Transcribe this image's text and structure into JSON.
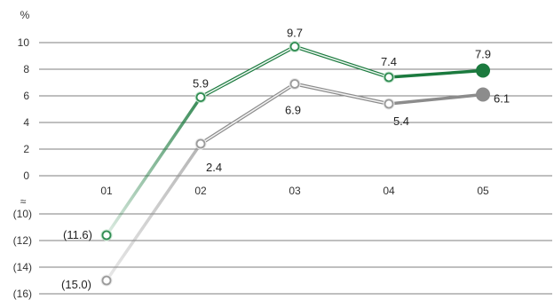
{
  "chart_data": {
    "type": "line",
    "title": "",
    "xlabel": "",
    "ylabel": "%",
    "categories": [
      "01",
      "02",
      "03",
      "04",
      "05"
    ],
    "y_ticks_upper": [
      {
        "value": 10,
        "label": "10"
      },
      {
        "value": 8,
        "label": "8"
      },
      {
        "value": 6,
        "label": "6"
      },
      {
        "value": 4,
        "label": "4"
      },
      {
        "value": 2,
        "label": "2"
      },
      {
        "value": 0,
        "label": "0"
      }
    ],
    "axis_break_symbol": "≈",
    "y_ticks_lower": [
      {
        "value": -10,
        "label": "(10)"
      },
      {
        "value": -12,
        "label": "(12)"
      },
      {
        "value": -14,
        "label": "(14)"
      },
      {
        "value": -16,
        "label": "(16)"
      }
    ],
    "series": [
      {
        "color": "#1b7a3e",
        "values": [
          -11.6,
          5.9,
          9.7,
          7.4,
          7.9
        ],
        "labels": [
          "(11.6)",
          "5.9",
          "9.7",
          "7.4",
          "7.9"
        ]
      },
      {
        "color": "#8c8c8c",
        "values": [
          -15.0,
          2.4,
          6.9,
          5.4,
          6.1
        ],
        "labels": [
          "(15.0)",
          "2.4",
          "6.9",
          "5.4",
          "6.1"
        ]
      }
    ],
    "grid": true
  }
}
